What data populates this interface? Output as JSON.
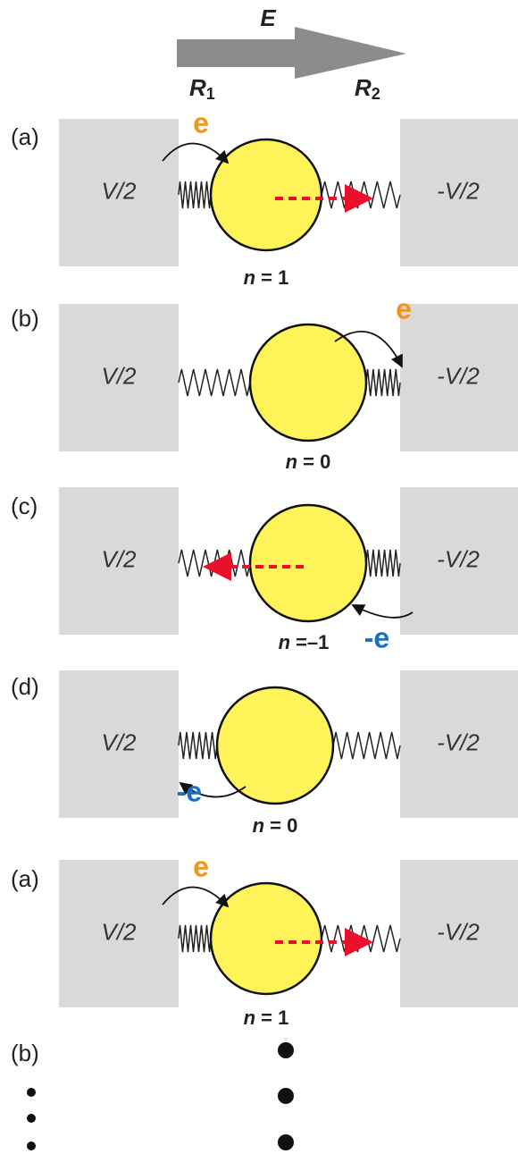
{
  "header": {
    "field": "E",
    "r1": {
      "symbol": "R",
      "subscript": "1"
    },
    "r2": {
      "symbol": "R",
      "subscript": "2"
    }
  },
  "panels": [
    {
      "label": "(a)",
      "left": "V/2",
      "right": "-V/2",
      "charge": "e",
      "n": {
        "symbol": "n",
        "value": "= 1"
      }
    },
    {
      "label": "(b)",
      "left": "V/2",
      "right": "-V/2",
      "charge": "e",
      "n": {
        "symbol": "n",
        "value": "= 0"
      }
    },
    {
      "label": "(c)",
      "left": "V/2",
      "right": "-V/2",
      "charge": "-e",
      "n": {
        "symbol": "n",
        "value": "=–1"
      }
    },
    {
      "label": "(d)",
      "left": "V/2",
      "right": "-V/2",
      "charge": "-e",
      "n": {
        "symbol": "n",
        "value": "= 0"
      }
    },
    {
      "label": "(a)",
      "left": "V/2",
      "right": "-V/2",
      "charge": "e",
      "n": {
        "symbol": "n",
        "value": "= 1"
      }
    }
  ],
  "continuation": {
    "label": "(b)"
  }
}
